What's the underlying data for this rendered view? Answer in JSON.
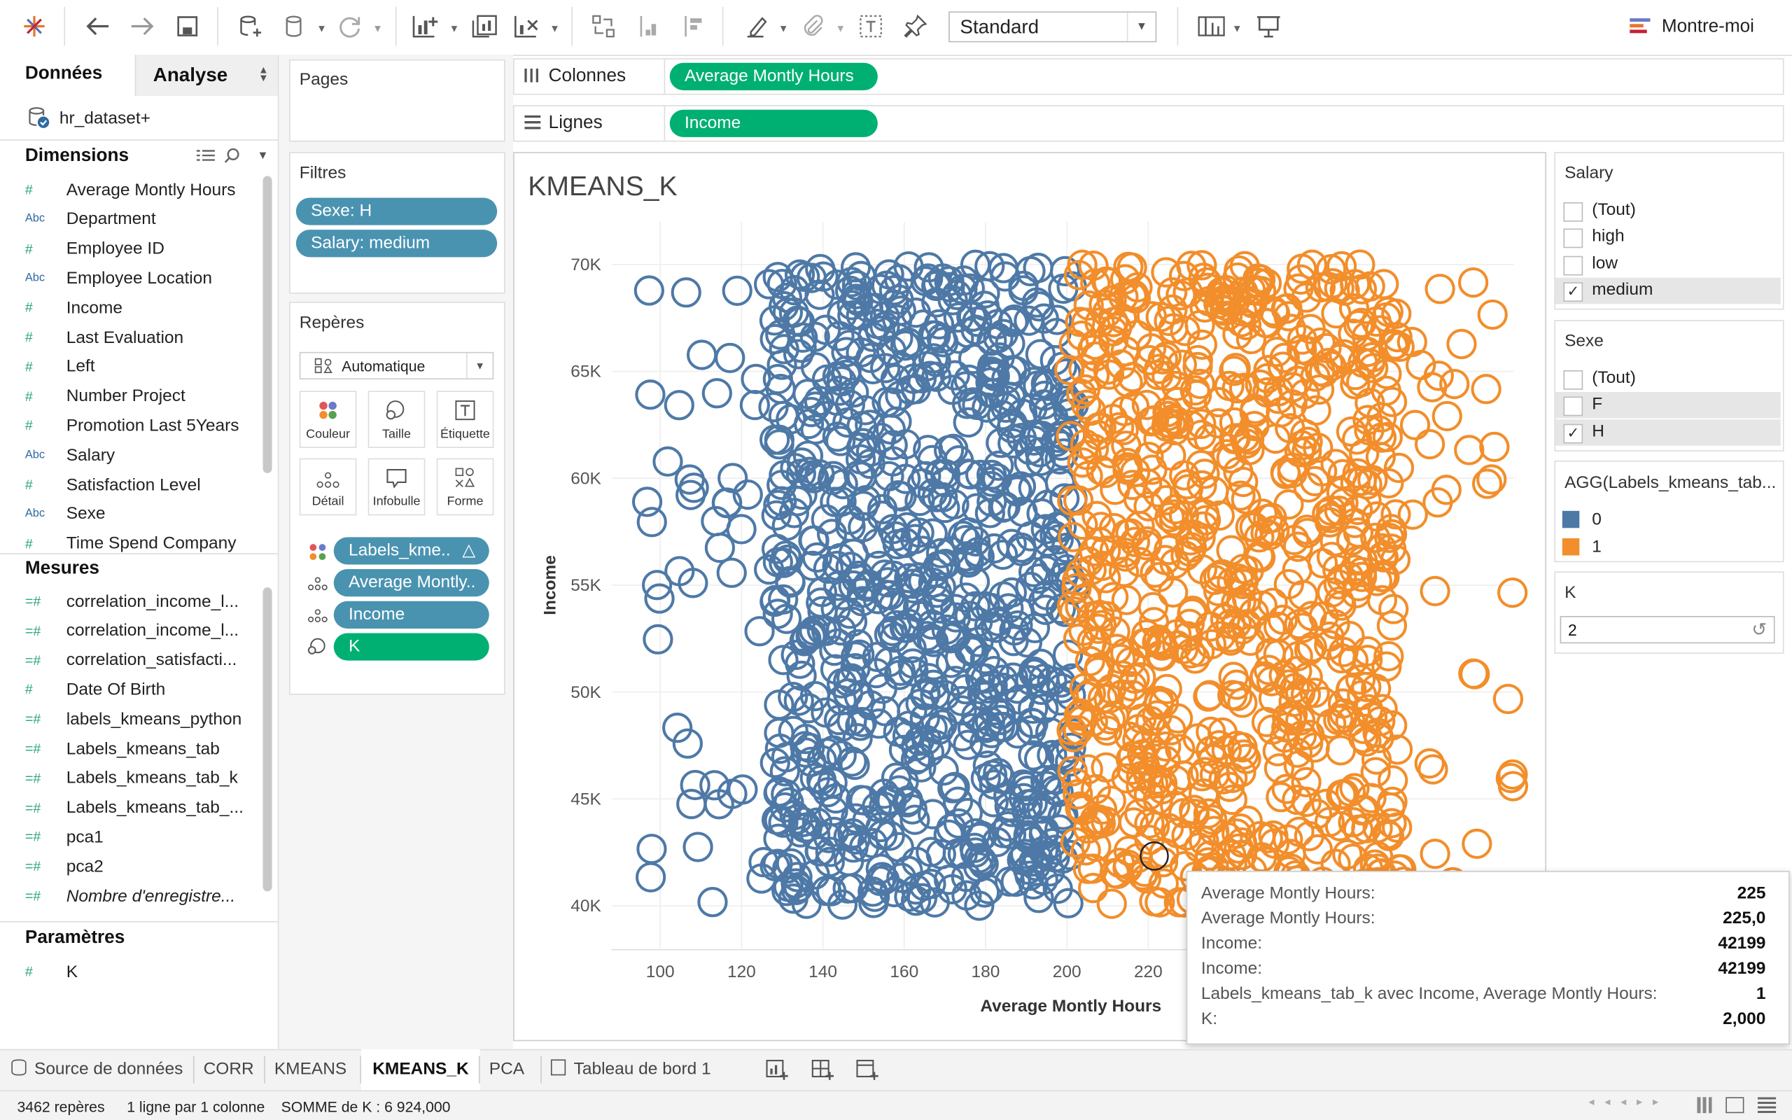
{
  "toolbar": {
    "fit_select": "Standard",
    "show_me": "Montre-moi"
  },
  "left_tabs": {
    "data": "Données",
    "analysis": "Analyse"
  },
  "datasource": "hr_dataset+",
  "dimensions": {
    "title": "Dimensions",
    "items": [
      {
        "label": "Average Montly Hours",
        "type": "#"
      },
      {
        "label": "Department",
        "type": "Abc"
      },
      {
        "label": "Employee ID",
        "type": "#"
      },
      {
        "label": "Employee Location",
        "type": "Abc"
      },
      {
        "label": "Income",
        "type": "#"
      },
      {
        "label": "Last Evaluation",
        "type": "#"
      },
      {
        "label": "Left",
        "type": "#"
      },
      {
        "label": "Number Project",
        "type": "#"
      },
      {
        "label": "Promotion Last 5Years",
        "type": "#"
      },
      {
        "label": "Salary",
        "type": "Abc"
      },
      {
        "label": "Satisfaction Level",
        "type": "#"
      },
      {
        "label": "Sexe",
        "type": "Abc"
      },
      {
        "label": "Time Spend Company",
        "type": "#"
      }
    ]
  },
  "measures": {
    "title": "Mesures",
    "items": [
      {
        "label": "correlation_income_l...",
        "type": "=#"
      },
      {
        "label": "correlation_income_l...",
        "type": "=#"
      },
      {
        "label": "correlation_satisfacti...",
        "type": "=#"
      },
      {
        "label": "Date Of Birth",
        "type": "#"
      },
      {
        "label": "labels_kmeans_python",
        "type": "=#"
      },
      {
        "label": "Labels_kmeans_tab",
        "type": "=#"
      },
      {
        "label": "Labels_kmeans_tab_k",
        "type": "=#"
      },
      {
        "label": "Labels_kmeans_tab_...",
        "type": "=#"
      },
      {
        "label": "pca1",
        "type": "=#"
      },
      {
        "label": "pca2",
        "type": "=#"
      },
      {
        "label": "Nombre d'enregistre...",
        "type": "=#"
      }
    ]
  },
  "parameters": {
    "title": "Paramètres",
    "items": [
      {
        "label": "K",
        "type": "#"
      }
    ]
  },
  "pages": {
    "title": "Pages"
  },
  "filters": {
    "title": "Filtres",
    "items": [
      "Sexe: H",
      "Salary: medium"
    ]
  },
  "marks": {
    "title": "Repères",
    "type": "Automatique",
    "buttons": [
      "Couleur",
      "Taille",
      "Étiquette",
      "Détail",
      "Infobulle",
      "Forme"
    ],
    "pills": [
      "Labels_kme..",
      "Average Montly..",
      "Income",
      "K"
    ]
  },
  "shelves": {
    "columns_label": "Colonnes",
    "columns_pill": "Average Montly Hours",
    "rows_label": "Lignes",
    "rows_pill": "Income"
  },
  "chart_data": {
    "type": "scatter",
    "title": "KMEANS_K",
    "xlabel": "Average Montly Hours",
    "ylabel": "Income",
    "xlim": [
      88,
      310
    ],
    "ylim": [
      38000,
      72000
    ],
    "x_ticks": [
      "100",
      "120",
      "140",
      "160",
      "180",
      "200",
      "220"
    ],
    "y_ticks": [
      "40K",
      "45K",
      "50K",
      "55K",
      "60K",
      "65K",
      "70K"
    ],
    "x_tick_values": [
      100,
      120,
      140,
      160,
      180,
      200,
      220
    ],
    "y_tick_values": [
      40000,
      45000,
      50000,
      55000,
      60000,
      65000,
      70000
    ],
    "series": [
      {
        "name": "0",
        "color": "#4e79a7",
        "x_range": [
          96,
          203
        ],
        "y_range": [
          40000,
          70000
        ],
        "note_split": "Average Montly Hours <= 202"
      },
      {
        "name": "1",
        "color": "#f28e2b",
        "x_range": [
          200,
          310
        ],
        "y_range": [
          40000,
          70000
        ]
      }
    ]
  },
  "legends": {
    "salary": {
      "title": "Salary",
      "items": [
        {
          "label": "(Tout)",
          "checked": false
        },
        {
          "label": "high",
          "checked": false
        },
        {
          "label": "low",
          "checked": false
        },
        {
          "label": "medium",
          "checked": true
        }
      ]
    },
    "sexe": {
      "title": "Sexe",
      "items": [
        {
          "label": "(Tout)",
          "checked": false
        },
        {
          "label": "F",
          "checked": false
        },
        {
          "label": "H",
          "checked": true
        }
      ]
    },
    "color": {
      "title": "AGG(Labels_kmeans_tab...",
      "items": [
        {
          "label": "0",
          "color": "#4e79a7"
        },
        {
          "label": "1",
          "color": "#f28e2b"
        }
      ]
    },
    "k": {
      "title": "K",
      "value": "2"
    }
  },
  "tooltip": {
    "rows": [
      {
        "label": "Average Montly Hours:",
        "value": "225"
      },
      {
        "label": "Average Montly Hours:",
        "value": "225,0"
      },
      {
        "label": "Income:",
        "value": "42199"
      },
      {
        "label": "Income:",
        "value": "42199"
      },
      {
        "label": "Labels_kmeans_tab_k avec Income, Average Montly Hours:",
        "value": "1"
      },
      {
        "label": "K:",
        "value": "2,000"
      }
    ]
  },
  "sheet_tabs": [
    "Source de données",
    "CORR",
    "KMEANS",
    "KMEANS_K",
    "PCA",
    "Tableau de bord 1"
  ],
  "active_tab": "KMEANS_K",
  "status": {
    "marks": "3462 repères",
    "rows": "1 ligne par 1 colonne",
    "sum": "SOMME de K : 6 924,000"
  }
}
